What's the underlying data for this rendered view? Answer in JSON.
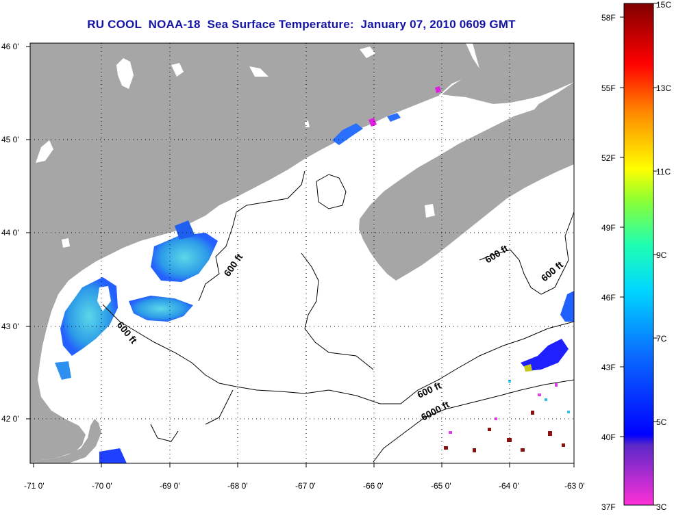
{
  "title": "RU COOL  NOAA-18  Sea Surface Temperature:  January 07, 2010 0609 GMT",
  "map": {
    "lon_ticks": [
      "-71 0'",
      "-70 0'",
      "-69 0'",
      "-68 0'",
      "-67 0'",
      "-66 0'",
      "-65 0'",
      "-64 0'",
      "-63 0'"
    ],
    "lat_ticks": [
      "46 0'",
      "45 0'",
      "44 0'",
      "43 0'",
      "42 0'"
    ],
    "lon_range": [
      -71,
      -63
    ],
    "lat_range": [
      41.5,
      46
    ],
    "contour_labels": [
      "600 ft",
      "600 ft",
      "600 ft",
      "600 ft",
      "600 ft",
      "6000 ft"
    ],
    "colors": {
      "land": "#a6a6a6",
      "ocean": "#ffffff",
      "contour": "#000000",
      "title": "#1414a8"
    }
  },
  "colorbar": {
    "fahrenheit_ticks": [
      "58F",
      "55F",
      "52F",
      "49F",
      "46F",
      "43F",
      "40F",
      "37F"
    ],
    "celsius_ticks": [
      "15C",
      "13C",
      "11C",
      "9C",
      "7C",
      "5C",
      "3C"
    ],
    "range_c": [
      3,
      15
    ],
    "range_f": [
      37,
      59
    ]
  }
}
